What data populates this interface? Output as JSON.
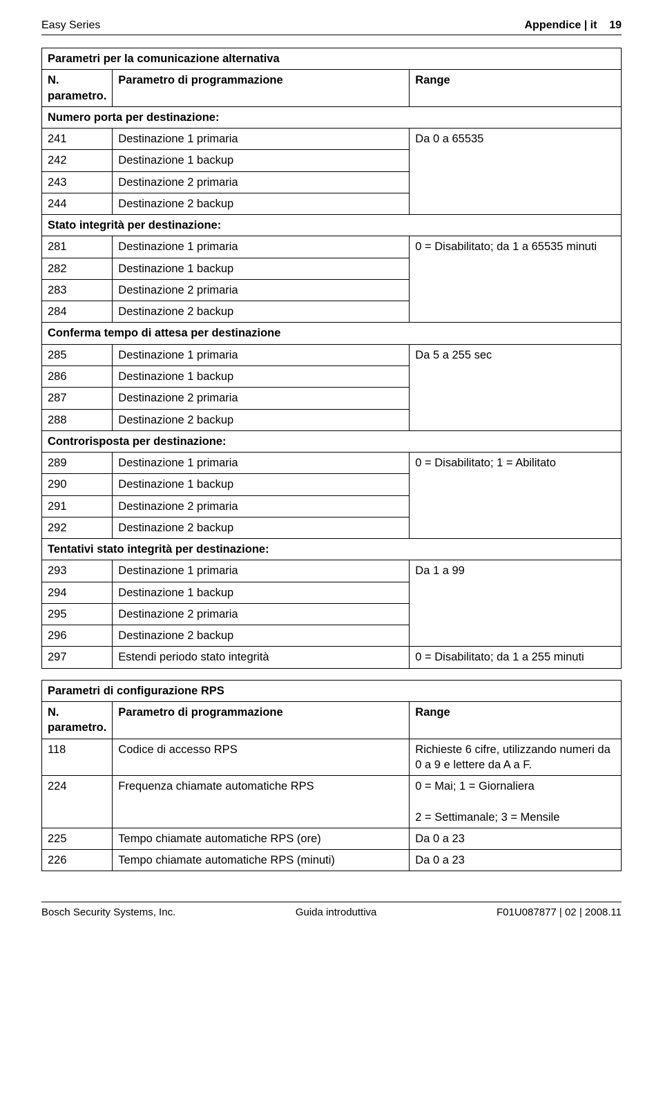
{
  "header": {
    "left": "Easy Series",
    "right": "Appendice | it    19"
  },
  "sectionA": {
    "title": "Parametri per la comunicazione alternativa",
    "colN": "N. parametro.",
    "colP": "Parametro di programmazione",
    "colR": "Range",
    "groups": [
      {
        "label": "Numero porta per destinazione:",
        "range": "Da 0 a 65535",
        "rows": [
          {
            "n": "241",
            "p": "Destinazione 1 primaria"
          },
          {
            "n": "242",
            "p": "Destinazione 1 backup"
          },
          {
            "n": "243",
            "p": "Destinazione 2 primaria"
          },
          {
            "n": "244",
            "p": "Destinazione 2 backup"
          }
        ]
      },
      {
        "label": "Stato integrità per destinazione:",
        "range": "0 = Disabilitato; da 1 a 65535 minuti",
        "rows": [
          {
            "n": "281",
            "p": "Destinazione 1 primaria"
          },
          {
            "n": "282",
            "p": "Destinazione 1 backup"
          },
          {
            "n": "283",
            "p": "Destinazione 2 primaria"
          },
          {
            "n": "284",
            "p": "Destinazione 2 backup"
          }
        ]
      },
      {
        "label": "Conferma tempo di attesa per destinazione",
        "range": "Da 5 a 255 sec",
        "rows": [
          {
            "n": "285",
            "p": "Destinazione 1 primaria"
          },
          {
            "n": "286",
            "p": "Destinazione 1 backup"
          },
          {
            "n": "287",
            "p": "Destinazione 2 primaria"
          },
          {
            "n": "288",
            "p": "Destinazione 2 backup"
          }
        ]
      },
      {
        "label": "Controrisposta per destinazione:",
        "range": "0 = Disabilitato; 1 = Abilitato",
        "rows": [
          {
            "n": "289",
            "p": "Destinazione 1 primaria"
          },
          {
            "n": "290",
            "p": "Destinazione 1 backup"
          },
          {
            "n": "291",
            "p": "Destinazione 2 primaria"
          },
          {
            "n": "292",
            "p": "Destinazione 2 backup"
          }
        ]
      },
      {
        "label": "Tentativi stato integrità per destinazione:",
        "range": "Da 1 a 99",
        "rows": [
          {
            "n": "293",
            "p": "Destinazione 1 primaria"
          },
          {
            "n": "294",
            "p": "Destinazione 1 backup"
          },
          {
            "n": "295",
            "p": "Destinazione 2 primaria"
          },
          {
            "n": "296",
            "p": "Destinazione 2 backup"
          }
        ]
      }
    ],
    "extraRow": {
      "n": "297",
      "p": "Estendi periodo stato integrità",
      "r": "0 = Disabilitato; da 1 a 255 minuti"
    }
  },
  "sectionB": {
    "title": "Parametri di configurazione RPS",
    "colN": "N. parametro.",
    "colP": "Parametro di programmazione",
    "colR": "Range",
    "rows": [
      {
        "n": "118",
        "p": "Codice di accesso RPS",
        "r": "Richieste 6 cifre, utilizzando numeri da 0 a 9 e lettere da A a F."
      },
      {
        "n": "224",
        "p": "Frequenza chiamate automatiche RPS",
        "r": "0 = Mai; 1 = Giornaliera\n2 = Settimanale; 3 = Mensile"
      },
      {
        "n": "225",
        "p": "Tempo chiamate automatiche RPS (ore)",
        "r": "Da 0 a 23"
      },
      {
        "n": "226",
        "p": "Tempo chiamate automatiche RPS (minuti)",
        "r": "Da 0 a 23"
      }
    ]
  },
  "footer": {
    "left": "Bosch Security Systems, Inc.",
    "center": "Guida introduttiva",
    "right": "F01U087877 | 02 | 2008.11"
  }
}
